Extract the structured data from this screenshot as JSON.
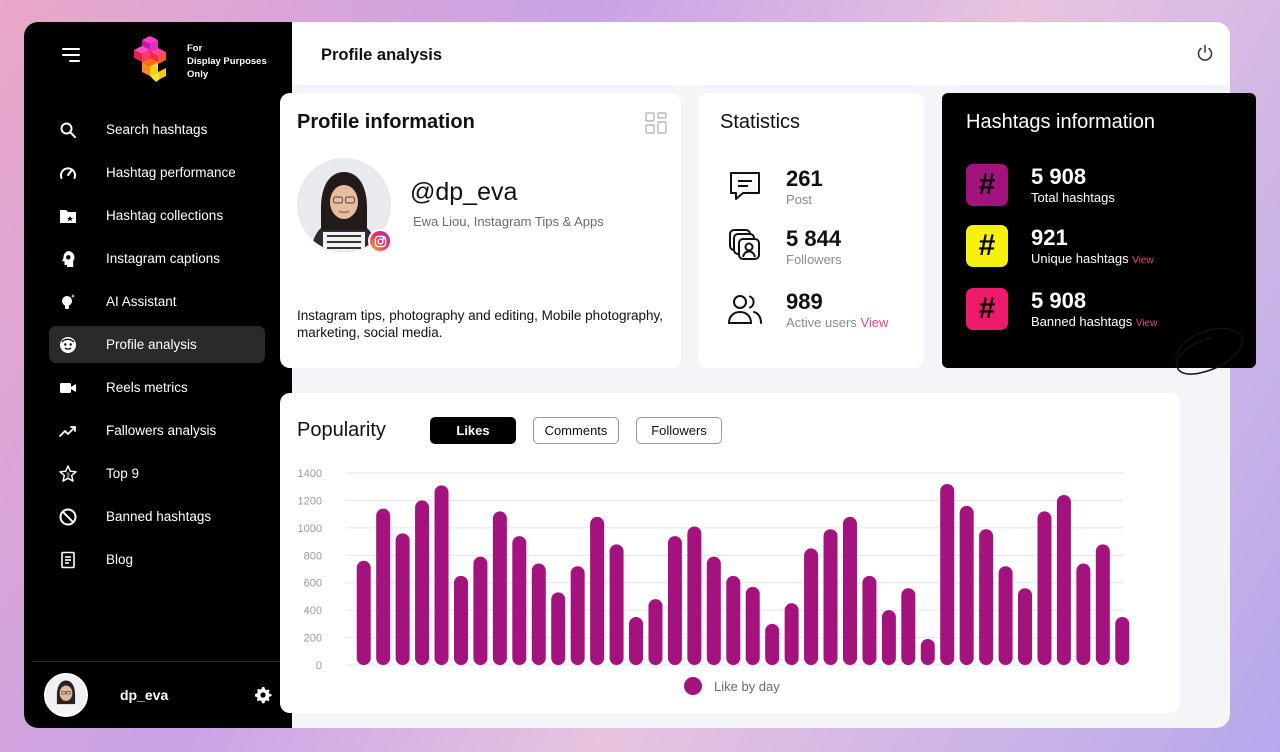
{
  "brand": {
    "logo_text_lines": [
      "For",
      "Display Purposes",
      "Only"
    ]
  },
  "sidebar": {
    "items": [
      {
        "label": "Search hashtags",
        "icon": "search-icon",
        "active": false
      },
      {
        "label": "Hashtag performance",
        "icon": "gauge-icon",
        "active": false
      },
      {
        "label": "Hashtag collections",
        "icon": "folder-icon",
        "active": false
      },
      {
        "label": "Instagram captions",
        "icon": "head-idea-icon",
        "active": false
      },
      {
        "label": "AI Assistant",
        "icon": "bulb-icon",
        "active": false
      },
      {
        "label": "Profile analysis",
        "icon": "face-icon",
        "active": true
      },
      {
        "label": "Reels metrics",
        "icon": "video-icon",
        "active": false
      },
      {
        "label": "Fallowers analysis",
        "icon": "trend-up-icon",
        "active": false
      },
      {
        "label": "Top 9",
        "icon": "star-icon",
        "active": false
      },
      {
        "label": "Banned hashtags",
        "icon": "ban-icon",
        "active": false
      },
      {
        "label": "Blog",
        "icon": "document-icon",
        "active": false
      }
    ],
    "user": {
      "name": "dp_eva"
    }
  },
  "header": {
    "title": "Profile analysis"
  },
  "profile": {
    "title": "Profile information",
    "handle": "@dp_eva",
    "full_name": "Ewa Liou, Instagram Tips & Apps",
    "bio": "Instagram tips, photography and editing, Mobile photography, marketing, social media."
  },
  "statistics": {
    "title": "Statistics",
    "items": [
      {
        "value": "261",
        "label": "Post",
        "link": ""
      },
      {
        "value": "5 844",
        "label": "Followers",
        "link": ""
      },
      {
        "value": "989",
        "label": "Active users",
        "link": "View"
      }
    ]
  },
  "hashtags": {
    "title": "Hashtags information",
    "items": [
      {
        "value": "5 908",
        "label": "Total hashtags",
        "link": "",
        "color": "#a4127e",
        "fg": "#000000"
      },
      {
        "value": "921",
        "label": "Unique hashtags",
        "link": "View",
        "color": "#f6f00d",
        "fg": "#000000"
      },
      {
        "value": "5 908",
        "label": "Banned hashtags",
        "link": "View",
        "color": "#ee1a6c",
        "fg": "#000000"
      }
    ]
  },
  "popularity": {
    "title": "Popularity",
    "tabs": [
      {
        "label": "Likes",
        "active": true
      },
      {
        "label": "Comments",
        "active": false
      },
      {
        "label": "Followers",
        "active": false
      }
    ]
  },
  "chart_data": {
    "type": "bar",
    "title": "Popularity",
    "ylim": [
      0,
      1400
    ],
    "yticks": [
      0,
      200,
      400,
      600,
      800,
      1000,
      1200,
      1400
    ],
    "grid": true,
    "legend_position": "bottom-center",
    "bar_color": "#a4127e",
    "series": [
      {
        "name": "Like by day",
        "values": [
          760,
          1140,
          960,
          1200,
          1310,
          650,
          790,
          1120,
          940,
          740,
          530,
          720,
          1080,
          880,
          350,
          480,
          940,
          1010,
          790,
          650,
          570,
          300,
          450,
          850,
          990,
          1080,
          650,
          400,
          560,
          190,
          1320,
          1160,
          990,
          720,
          560,
          1120,
          1240,
          740,
          880,
          350
        ]
      }
    ]
  }
}
